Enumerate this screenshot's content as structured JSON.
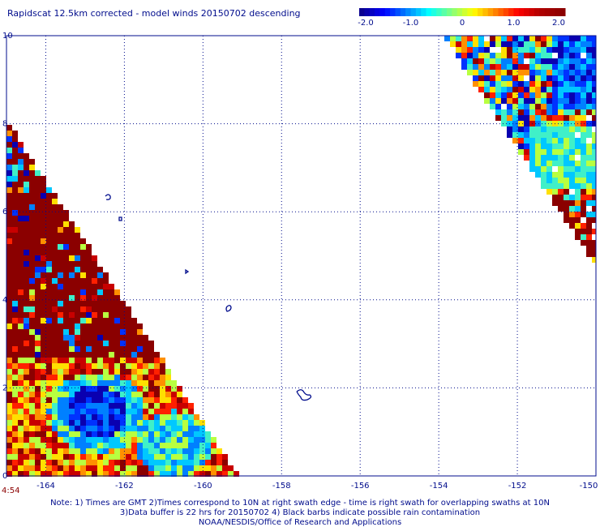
{
  "title": "Rapidscat 12.5km corrected - model winds 20150702 descending",
  "colorbar": {
    "tick_labels": [
      "-2.0",
      "-1.0",
      "0",
      "1.0",
      "2.0"
    ],
    "tick_values": [
      -2.0,
      -1.0,
      0,
      1.0,
      2.0
    ],
    "range": [
      -2.0,
      2.0
    ],
    "colors": [
      "#1a00b4",
      "#0046ff",
      "#00c8ff",
      "#50ffc0",
      "#d0ff30",
      "#ffe000",
      "#ff8000",
      "#ff1000",
      "#c80000",
      "#8b0000"
    ]
  },
  "map": {
    "lon_labels": [
      "-164",
      "-162",
      "-160",
      "-158",
      "-156",
      "-154",
      "-152",
      "-150"
    ],
    "lat_labels": [
      "0",
      "2",
      "4",
      "6",
      "8",
      "10"
    ],
    "lon_range": [
      -165,
      -150
    ],
    "lat_range": [
      0,
      10
    ],
    "grid": "dotted",
    "coastline_color": "#000c8c",
    "time_label": "4:54"
  },
  "notes": [
    "Note: 1) Times are GMT 2)Times correspond to 10N at right swath edge - time is right swath for overlapping swaths at 10N",
    "3)Data buffer is 22 hrs for 20150702 4) Black barbs indicate possible rain contamination",
    "NOAA/NESDIS/Office of Research and Applications"
  ]
}
